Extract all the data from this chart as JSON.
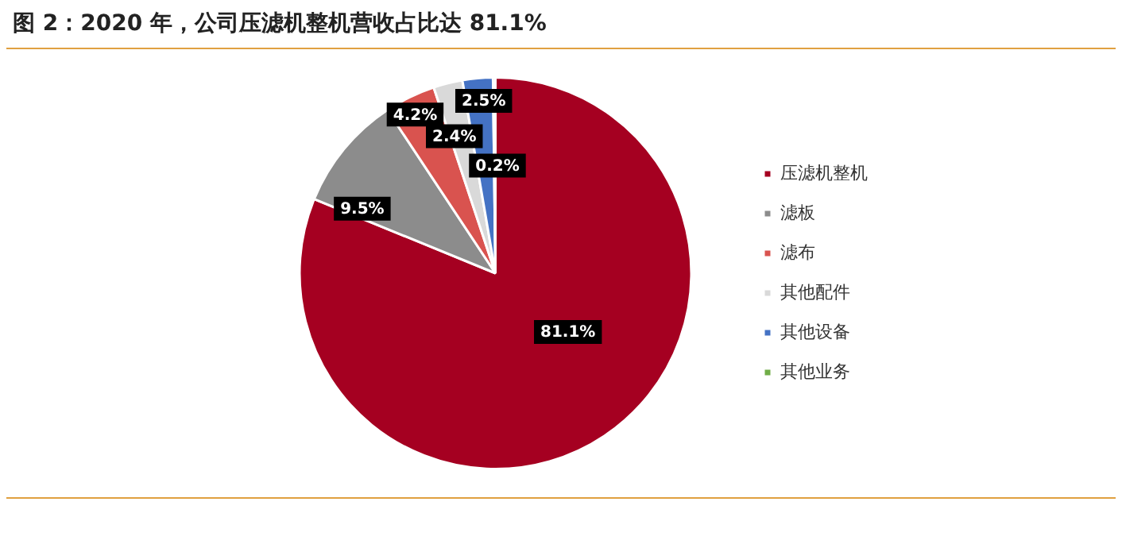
{
  "chart_data": {
    "type": "pie",
    "title": "图 2：2020 年，公司压滤机整机营收占比达 81.1%",
    "categories": [
      "压滤机整机",
      "滤板",
      "滤布",
      "其他配件",
      "其他设备",
      "其他业务"
    ],
    "values": [
      81.1,
      9.5,
      4.2,
      2.4,
      2.5,
      0.2
    ],
    "value_labels": [
      "81.1%",
      "9.5%",
      "4.2%",
      "2.4%",
      "2.5%",
      "0.2%"
    ],
    "colors": [
      "#a50021",
      "#8c8c8c",
      "#d9534f",
      "#d9d9d9",
      "#4472c4",
      "#70ad47"
    ],
    "legend": "right"
  }
}
